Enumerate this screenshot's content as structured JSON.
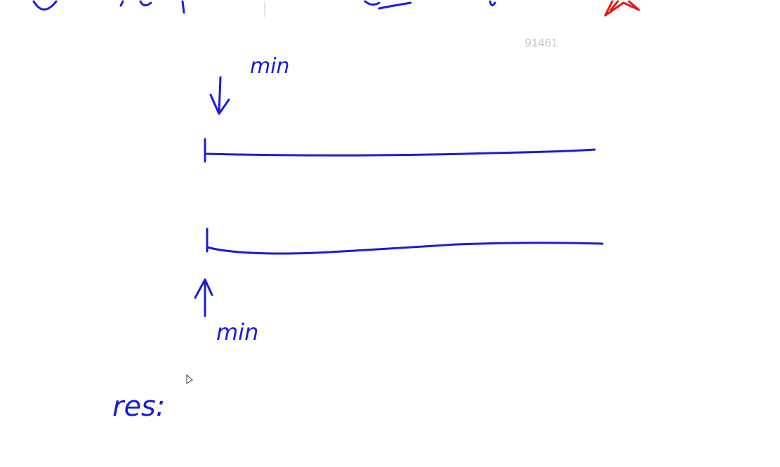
{
  "watermark": "91461",
  "annotations": {
    "top_label": "min",
    "bottom_label": "min",
    "result_label": "res:"
  }
}
